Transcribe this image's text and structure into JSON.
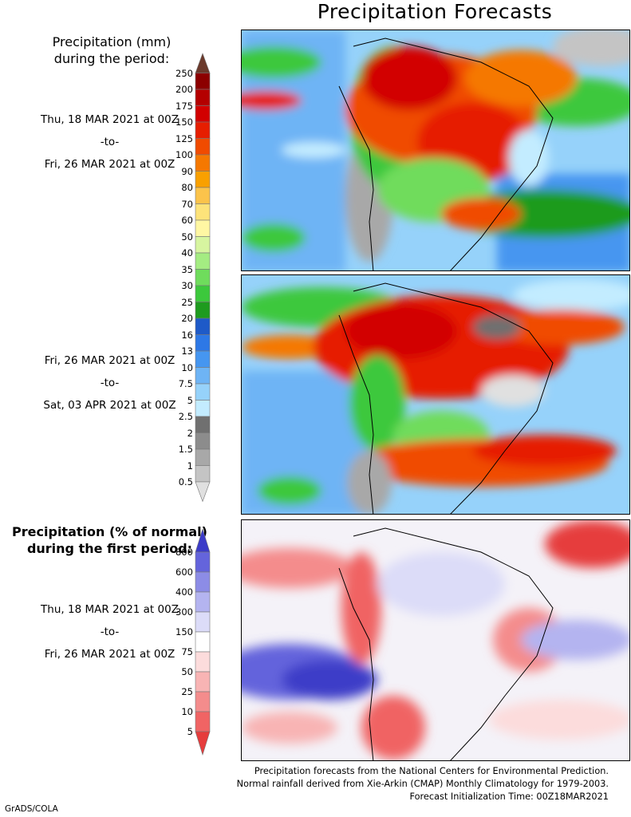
{
  "title": "Precipitation Forecasts",
  "legend1": {
    "title_line1": "Precipitation (mm)",
    "title_line2": "during the period:",
    "ticks": [
      "250",
      "200",
      "175",
      "150",
      "125",
      "100",
      "90",
      "80",
      "70",
      "60",
      "50",
      "40",
      "35",
      "30",
      "25",
      "20",
      "16",
      "13",
      "10",
      "7.5",
      "5",
      "2.5",
      "2",
      "1.5",
      "1",
      "0.5"
    ],
    "colors": [
      "#6b3a2c",
      "#8c0000",
      "#b40000",
      "#d20000",
      "#e61e00",
      "#f04b00",
      "#f57800",
      "#f9a000",
      "#fbc34b",
      "#fde37a",
      "#fff7a3",
      "#d7f5a0",
      "#a4ec82",
      "#6fdc5c",
      "#3cc83c",
      "#1e9b1e",
      "#1e5ac8",
      "#2d78e6",
      "#4696f0",
      "#6eb4f5",
      "#96d2fa",
      "#c3ecff",
      "#707070",
      "#8c8c8c",
      "#a8a8a8",
      "#c4c4c4",
      "#e0e0e0"
    ]
  },
  "legend2": {
    "title_line1": "Precipitation (% of normal)",
    "title_line2": "during the first period:",
    "ticks": [
      "800",
      "600",
      "400",
      "300",
      "150",
      "75",
      "50",
      "25",
      "10",
      "5"
    ],
    "colors": [
      "#3c3cc8",
      "#6464dc",
      "#8c8ce6",
      "#b4b4f0",
      "#dcdcf8",
      "#ffffff",
      "#fcdcdc",
      "#f8b4b4",
      "#f48c8c",
      "#f06464",
      "#e63c3c"
    ]
  },
  "periods": [
    {
      "start": "Thu, 18 MAR 2021 at 00Z",
      "sep": "-to-",
      "end": "Fri, 26 MAR 2021 at 00Z"
    },
    {
      "start": "Fri, 26 MAR 2021 at 00Z",
      "sep": "-to-",
      "end": "Sat, 03 APR 2021 at 00Z"
    },
    {
      "start": "Thu, 18 MAR 2021 at 00Z",
      "sep": "-to-",
      "end": "Fri, 26 MAR 2021 at 00Z"
    }
  ],
  "footer": {
    "line1": "Precipitation forecasts from the National Centers for Environmental Prediction.",
    "line2": "Normal rainfall derived from Xie-Arkin (CMAP) Monthly Climatology for 1979-2003.",
    "line3": "Forecast Initialization Time: 00Z18MAR2021"
  },
  "credit": "GrADS/COLA"
}
